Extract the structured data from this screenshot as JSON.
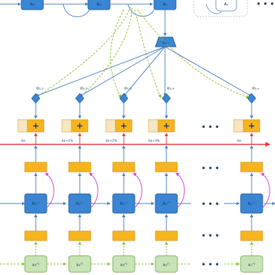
{
  "colors": {
    "blue": "#3a86d4",
    "blue_stroke": "#245f9e",
    "orange": "#f6b41e",
    "orange_stroke": "#c98a0a",
    "green": "#c8e3b6",
    "green_stroke": "#7fae62",
    "red": "#e8352f",
    "magenta": "#d93ad6",
    "dashed_green": "#8fbf2a",
    "line": "#4a7fc0",
    "text": "#1e3a66",
    "grey_box": "#f6e6c2"
  },
  "top_row": {
    "node_labels": [
      "A₁",
      "A₂",
      "A₃",
      "Aₙ"
    ],
    "dots": "• • •"
  },
  "aggregator": {
    "label": "Aₐᵧ"
  },
  "alpha_labels": [
    "α₁,₁",
    "α₁,₂",
    "α₁,₃",
    "α₁,₄",
    "α₁,ₙ"
  ],
  "combine": {
    "symbol": "+",
    "dots": "• • •"
  },
  "red_labels": [
    "ba",
    "ba+1%",
    "ba+2%",
    "ba+3%",
    "ba"
  ],
  "encoder_row": {
    "labels": [
      "A₁⁽ʹ⁾",
      "A₂⁽ʹ⁾",
      "A₃⁽ʹ⁾",
      "A₄⁽ʹ⁾",
      "Aₙ⁽ʹ⁾"
    ],
    "dots": "• • •"
  },
  "orange_dots": "• • •",
  "input_row": {
    "labels": [
      "x₁⁽ʹ⁾",
      "x₂⁽ʹ⁾",
      "x₃⁽ʹ⁾",
      "x₄⁽ʹ⁾",
      "xₙ⁽ʹ⁾"
    ],
    "dots": "• • •"
  },
  "icons": {
    "combine_node": "plus-icon",
    "alpha_node": "diamond-icon"
  }
}
